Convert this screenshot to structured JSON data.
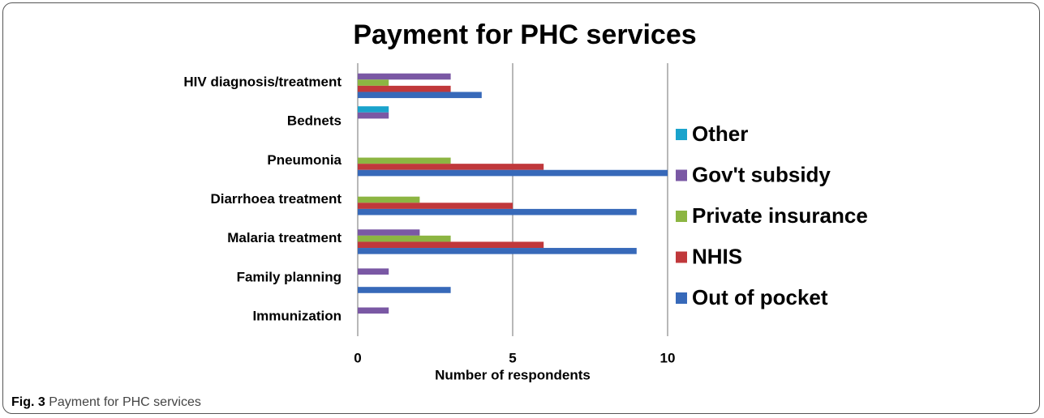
{
  "chart_data": {
    "type": "barh",
    "title": "Payment for PHC services",
    "categories": [
      "HIV diagnosis/treatment",
      "Bednets",
      "Pneumonia",
      "Diarrhoea treatment",
      "Malaria treatment",
      "Family planning",
      "Immunization"
    ],
    "series": [
      {
        "name": "Other",
        "color": "#1aa3cc",
        "values": [
          0,
          1,
          0,
          0,
          0,
          0,
          0
        ]
      },
      {
        "name": "Gov't subsidy",
        "color": "#7a58a4",
        "values": [
          3,
          1,
          0,
          0,
          2,
          1,
          1
        ]
      },
      {
        "name": "Private insurance",
        "color": "#8cb542",
        "values": [
          1,
          0,
          3,
          2,
          3,
          0,
          0
        ]
      },
      {
        "name": "NHIS",
        "color": "#c0383b",
        "values": [
          3,
          0,
          6,
          5,
          6,
          0,
          0
        ]
      },
      {
        "name": "Out of pocket",
        "color": "#3769b9",
        "values": [
          4,
          0,
          10,
          9,
          9,
          3,
          0
        ]
      }
    ],
    "xlabel": "Number of respondents",
    "xlim": [
      0,
      10
    ],
    "xticks": [
      0,
      5,
      10
    ],
    "grid": true,
    "legend": "right"
  },
  "caption": {
    "label": "Fig. 3",
    "text": "Payment for PHC services"
  }
}
